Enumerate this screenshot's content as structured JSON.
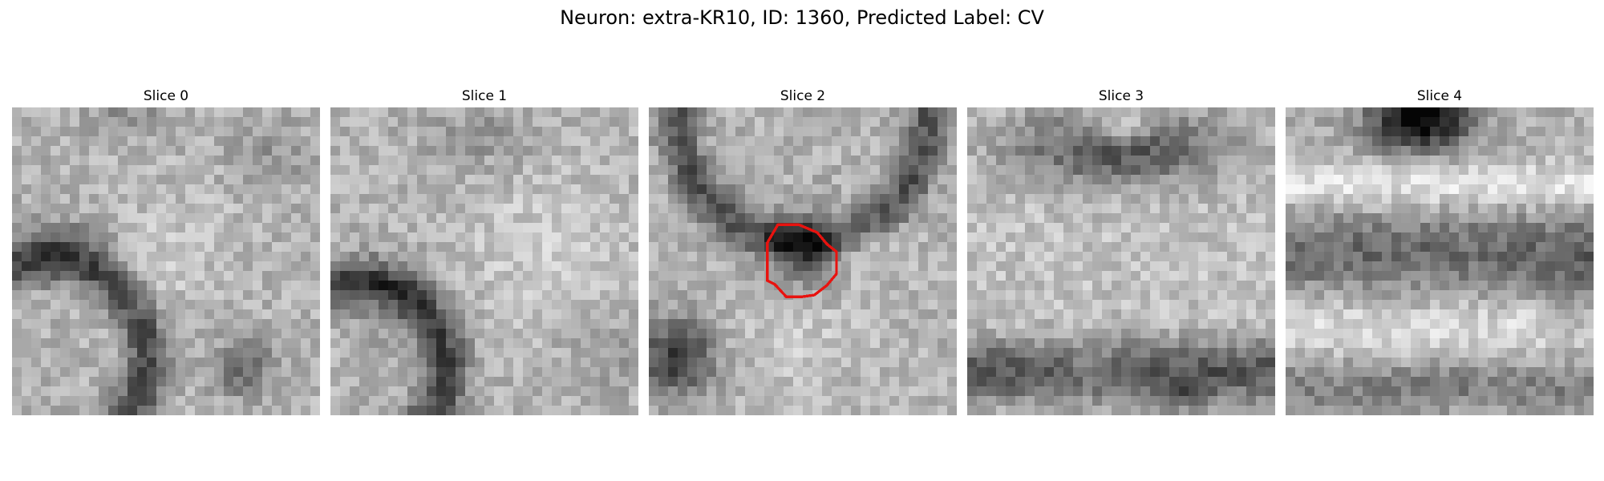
{
  "figure": {
    "title": "Neuron: extra-KR10, ID: 1360, Predicted Label: CV"
  },
  "slices": [
    {
      "label": "Slice 0"
    },
    {
      "label": "Slice 1"
    },
    {
      "label": "Slice 2",
      "roi_outline_color": "#e8130f"
    },
    {
      "label": "Slice 3"
    },
    {
      "label": "Slice 4"
    }
  ],
  "colors": {
    "background": "#ffffff",
    "colormap": "grayscale",
    "roi_outline": "#e8130f"
  }
}
